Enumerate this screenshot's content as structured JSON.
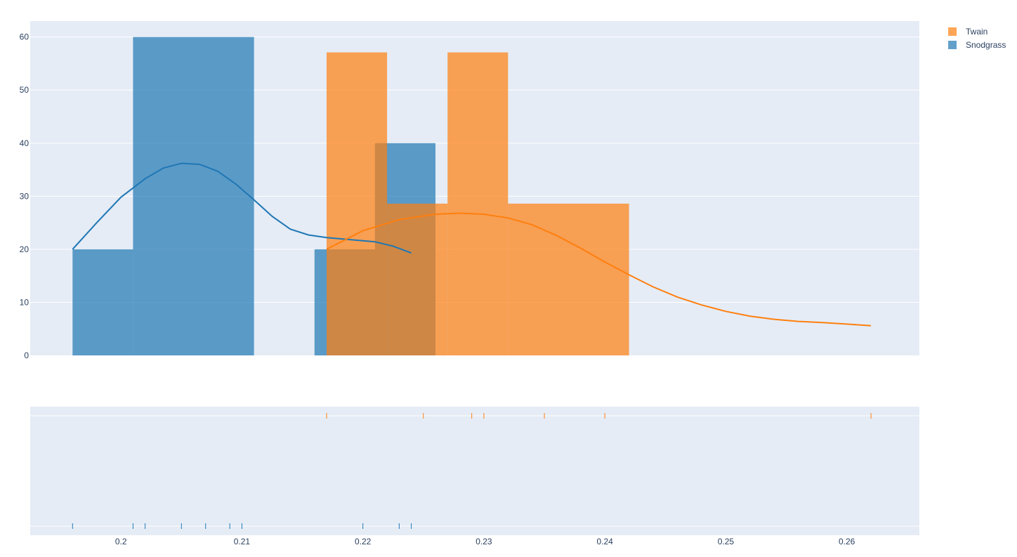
{
  "chart_data": {
    "type": "histogram",
    "title": "",
    "xlabel": "",
    "ylabel": "",
    "xlim": [
      0.1925,
      0.266
    ],
    "ylim": [
      0,
      63
    ],
    "y_ticks": [
      0,
      10,
      20,
      30,
      40,
      50,
      60
    ],
    "x_ticks": [
      0.2,
      0.21,
      0.22,
      0.23,
      0.24,
      0.25,
      0.26
    ],
    "grid": true,
    "legend_placement": "top-right",
    "colors": {
      "Twain": "#ff7f0e",
      "Snodgrass": "#1f77b4",
      "plot_bg": "#e5ecf6"
    },
    "legend": [
      "Twain",
      "Snodgrass"
    ],
    "series": [
      {
        "name": "Snodgrass",
        "bars": [
          {
            "x0": 0.196,
            "x1": 0.201,
            "y": 20
          },
          {
            "x0": 0.201,
            "x1": 0.211,
            "y": 60
          },
          {
            "x0": 0.216,
            "x1": 0.221,
            "y": 20
          },
          {
            "x0": 0.221,
            "x1": 0.226,
            "y": 40
          }
        ],
        "kde": [
          [
            0.196,
            20.0
          ],
          [
            0.198,
            25.0
          ],
          [
            0.2,
            29.8
          ],
          [
            0.202,
            33.3
          ],
          [
            0.2035,
            35.3
          ],
          [
            0.205,
            36.2
          ],
          [
            0.2065,
            36.0
          ],
          [
            0.208,
            34.7
          ],
          [
            0.2095,
            32.3
          ],
          [
            0.211,
            29.3
          ],
          [
            0.2125,
            26.2
          ],
          [
            0.214,
            23.8
          ],
          [
            0.2155,
            22.7
          ],
          [
            0.217,
            22.2
          ],
          [
            0.219,
            21.8
          ],
          [
            0.221,
            21.4
          ],
          [
            0.2225,
            20.6
          ],
          [
            0.224,
            19.3
          ]
        ],
        "rug": [
          0.196,
          0.201,
          0.202,
          0.205,
          0.207,
          0.209,
          0.21,
          0.22,
          0.223,
          0.224
        ]
      },
      {
        "name": "Twain",
        "bars": [
          {
            "x0": 0.217,
            "x1": 0.222,
            "y": 57.1
          },
          {
            "x0": 0.222,
            "x1": 0.227,
            "y": 28.6
          },
          {
            "x0": 0.227,
            "x1": 0.232,
            "y": 57.1
          },
          {
            "x0": 0.232,
            "x1": 0.242,
            "y": 28.6
          }
        ],
        "kde": [
          [
            0.217,
            20.0
          ],
          [
            0.22,
            23.5
          ],
          [
            0.223,
            25.6
          ],
          [
            0.226,
            26.6
          ],
          [
            0.228,
            26.8
          ],
          [
            0.23,
            26.6
          ],
          [
            0.232,
            25.9
          ],
          [
            0.234,
            24.6
          ],
          [
            0.236,
            22.6
          ],
          [
            0.238,
            20.2
          ],
          [
            0.24,
            17.6
          ],
          [
            0.242,
            15.2
          ],
          [
            0.244,
            12.9
          ],
          [
            0.246,
            11.0
          ],
          [
            0.248,
            9.5
          ],
          [
            0.25,
            8.3
          ],
          [
            0.252,
            7.4
          ],
          [
            0.254,
            6.8
          ],
          [
            0.256,
            6.4
          ],
          [
            0.258,
            6.2
          ],
          [
            0.26,
            5.9
          ],
          [
            0.262,
            5.6
          ]
        ],
        "rug": [
          0.217,
          0.225,
          0.229,
          0.23,
          0.235,
          0.24,
          0.262
        ]
      }
    ]
  }
}
